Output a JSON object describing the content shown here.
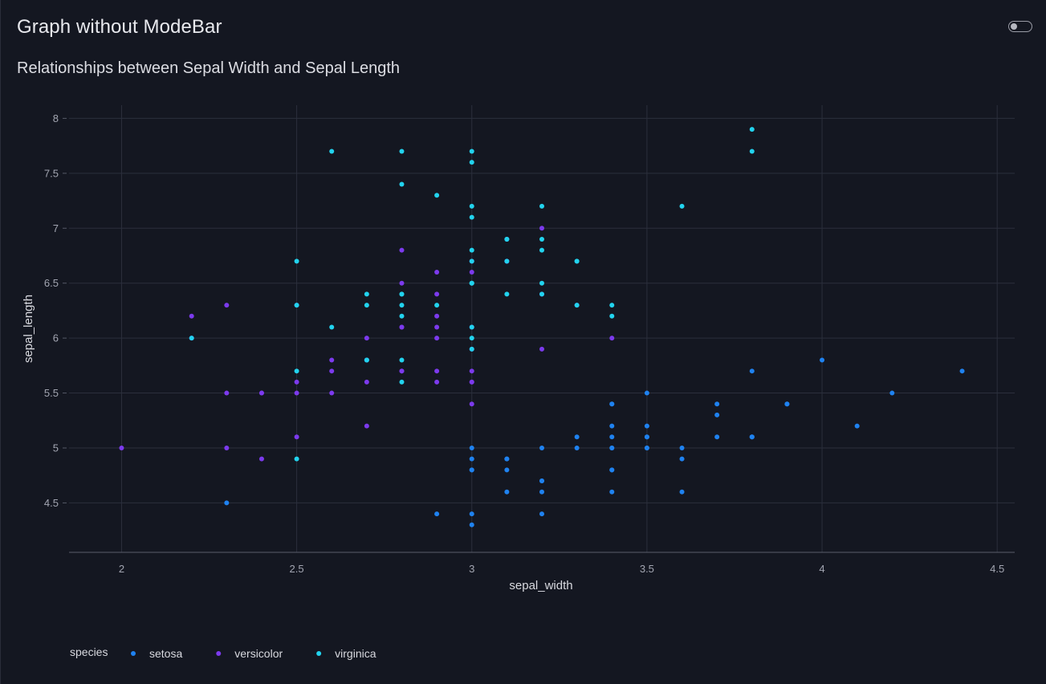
{
  "page": {
    "title": "Graph without ModeBar"
  },
  "toggle": {
    "state": "off"
  },
  "chart_data": {
    "type": "scatter",
    "title": "Relationships between Sepal Width and Sepal Length",
    "xlabel": "sepal_width",
    "ylabel": "sepal_length",
    "xlim": [
      1.85,
      4.55
    ],
    "ylim": [
      4.05,
      8.12
    ],
    "xticks": [
      2,
      2.5,
      3,
      3.5,
      4,
      4.5
    ],
    "xtick_labels": [
      "2",
      "2.5",
      "3",
      "3.5",
      "4",
      "4.5"
    ],
    "yticks": [
      4.5,
      5,
      5.5,
      6,
      6.5,
      7,
      7.5,
      8
    ],
    "ytick_labels": [
      "4.5",
      "5",
      "5.5",
      "6",
      "6.5",
      "7",
      "7.5",
      "8"
    ],
    "grid": true,
    "legend": {
      "title": "species",
      "placement": "bottom-left",
      "orientation": "horizontal"
    },
    "series": [
      {
        "name": "setosa",
        "color": "#1f82f0",
        "points": [
          [
            3.5,
            5.1
          ],
          [
            3.0,
            4.9
          ],
          [
            3.2,
            4.7
          ],
          [
            3.1,
            4.6
          ],
          [
            3.6,
            5.0
          ],
          [
            3.9,
            5.4
          ],
          [
            3.4,
            4.6
          ],
          [
            3.4,
            5.0
          ],
          [
            2.9,
            4.4
          ],
          [
            3.1,
            4.9
          ],
          [
            3.7,
            5.4
          ],
          [
            3.4,
            4.8
          ],
          [
            3.0,
            4.8
          ],
          [
            3.0,
            4.3
          ],
          [
            4.0,
            5.8
          ],
          [
            4.4,
            5.7
          ],
          [
            3.9,
            5.4
          ],
          [
            3.5,
            5.1
          ],
          [
            3.8,
            5.7
          ],
          [
            3.8,
            5.1
          ],
          [
            3.4,
            5.4
          ],
          [
            3.7,
            5.1
          ],
          [
            3.6,
            4.6
          ],
          [
            3.3,
            5.1
          ],
          [
            3.4,
            4.8
          ],
          [
            3.0,
            5.0
          ],
          [
            3.4,
            5.0
          ],
          [
            3.5,
            5.2
          ],
          [
            3.4,
            5.2
          ],
          [
            3.2,
            4.7
          ],
          [
            3.1,
            4.8
          ],
          [
            3.4,
            5.4
          ],
          [
            4.1,
            5.2
          ],
          [
            4.2,
            5.5
          ],
          [
            3.1,
            4.9
          ],
          [
            3.2,
            5.0
          ],
          [
            3.5,
            5.5
          ],
          [
            3.6,
            4.9
          ],
          [
            3.0,
            4.4
          ],
          [
            3.4,
            5.1
          ],
          [
            3.5,
            5.0
          ],
          [
            2.3,
            4.5
          ],
          [
            3.2,
            4.4
          ],
          [
            3.5,
            5.0
          ],
          [
            3.8,
            5.1
          ],
          [
            3.0,
            4.8
          ],
          [
            3.8,
            5.1
          ],
          [
            3.2,
            4.6
          ],
          [
            3.7,
            5.3
          ],
          [
            3.3,
            5.0
          ]
        ]
      },
      {
        "name": "versicolor",
        "color": "#7c3aed",
        "points": [
          [
            3.2,
            7.0
          ],
          [
            3.2,
            6.4
          ],
          [
            3.1,
            6.9
          ],
          [
            2.3,
            5.5
          ],
          [
            2.8,
            6.5
          ],
          [
            2.8,
            5.7
          ],
          [
            3.3,
            6.3
          ],
          [
            2.4,
            4.9
          ],
          [
            2.9,
            6.6
          ],
          [
            2.7,
            5.2
          ],
          [
            2.0,
            5.0
          ],
          [
            3.0,
            5.9
          ],
          [
            2.2,
            6.0
          ],
          [
            2.9,
            6.1
          ],
          [
            2.9,
            5.6
          ],
          [
            3.1,
            6.7
          ],
          [
            3.0,
            5.6
          ],
          [
            2.7,
            5.8
          ],
          [
            2.2,
            6.2
          ],
          [
            2.5,
            5.6
          ],
          [
            3.2,
            5.9
          ],
          [
            2.8,
            6.1
          ],
          [
            2.5,
            6.3
          ],
          [
            2.8,
            6.1
          ],
          [
            2.9,
            6.4
          ],
          [
            3.0,
            6.6
          ],
          [
            2.8,
            6.8
          ],
          [
            3.0,
            6.7
          ],
          [
            2.9,
            6.0
          ],
          [
            2.6,
            5.7
          ],
          [
            2.4,
            5.5
          ],
          [
            2.4,
            5.5
          ],
          [
            2.7,
            5.8
          ],
          [
            2.7,
            6.0
          ],
          [
            3.0,
            5.4
          ],
          [
            3.4,
            6.0
          ],
          [
            3.1,
            6.7
          ],
          [
            2.3,
            6.3
          ],
          [
            3.0,
            5.6
          ],
          [
            2.5,
            5.5
          ],
          [
            2.6,
            5.5
          ],
          [
            3.0,
            6.1
          ],
          [
            2.6,
            5.8
          ],
          [
            2.3,
            5.0
          ],
          [
            2.7,
            5.6
          ],
          [
            3.0,
            5.7
          ],
          [
            2.9,
            5.7
          ],
          [
            2.9,
            6.2
          ],
          [
            2.5,
            5.1
          ],
          [
            2.8,
            5.7
          ]
        ]
      },
      {
        "name": "virginica",
        "color": "#22d3ee",
        "points": [
          [
            3.3,
            6.3
          ],
          [
            2.7,
            5.8
          ],
          [
            3.0,
            7.1
          ],
          [
            2.9,
            6.3
          ],
          [
            3.0,
            6.5
          ],
          [
            3.0,
            7.6
          ],
          [
            2.5,
            4.9
          ],
          [
            2.9,
            7.3
          ],
          [
            2.5,
            6.7
          ],
          [
            3.6,
            7.2
          ],
          [
            3.2,
            6.5
          ],
          [
            2.7,
            6.4
          ],
          [
            3.0,
            6.8
          ],
          [
            2.5,
            5.7
          ],
          [
            2.8,
            5.8
          ],
          [
            3.2,
            6.4
          ],
          [
            3.0,
            6.5
          ],
          [
            3.8,
            7.7
          ],
          [
            2.6,
            7.7
          ],
          [
            2.2,
            6.0
          ],
          [
            3.2,
            6.9
          ],
          [
            2.8,
            5.6
          ],
          [
            2.8,
            7.7
          ],
          [
            2.7,
            6.3
          ],
          [
            3.3,
            6.7
          ],
          [
            3.2,
            7.2
          ],
          [
            2.8,
            6.2
          ],
          [
            3.0,
            6.1
          ],
          [
            2.8,
            6.4
          ],
          [
            3.0,
            7.2
          ],
          [
            2.8,
            7.4
          ],
          [
            3.8,
            7.9
          ],
          [
            2.8,
            6.4
          ],
          [
            2.8,
            6.3
          ],
          [
            2.6,
            6.1
          ],
          [
            3.0,
            7.7
          ],
          [
            3.4,
            6.3
          ],
          [
            3.1,
            6.4
          ],
          [
            3.0,
            6.0
          ],
          [
            3.1,
            6.9
          ],
          [
            3.1,
            6.7
          ],
          [
            3.1,
            6.9
          ],
          [
            2.7,
            5.8
          ],
          [
            3.2,
            6.8
          ],
          [
            3.3,
            6.7
          ],
          [
            3.0,
            6.7
          ],
          [
            2.5,
            6.3
          ],
          [
            3.0,
            6.5
          ],
          [
            3.4,
            6.2
          ],
          [
            3.0,
            5.9
          ]
        ]
      }
    ]
  }
}
